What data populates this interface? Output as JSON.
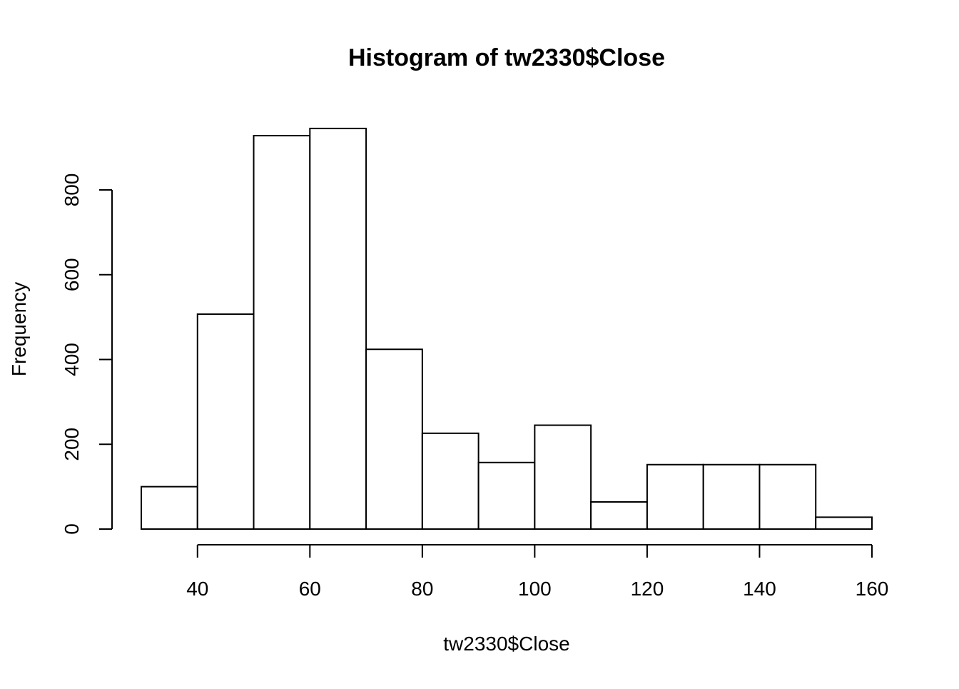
{
  "chart_data": {
    "type": "bar",
    "subtype": "histogram",
    "title": "Histogram of tw2330$Close",
    "xlabel": "tw2330$Close",
    "ylabel": "Frequency",
    "bin_edges": [
      30,
      40,
      50,
      60,
      70,
      80,
      90,
      100,
      110,
      120,
      130,
      140,
      150,
      160
    ],
    "values": [
      100,
      507,
      928,
      945,
      424,
      226,
      157,
      245,
      64,
      152,
      152,
      152,
      28
    ],
    "xlim": [
      30,
      160
    ],
    "ylim": [
      0,
      945
    ],
    "x_ticks": [
      40,
      60,
      80,
      100,
      120,
      140,
      160
    ],
    "x_tick_labels": [
      "40",
      "60",
      "80",
      "100",
      "120",
      "140",
      "160"
    ],
    "y_ticks": [
      0,
      200,
      400,
      600,
      800
    ],
    "y_tick_labels": [
      "0",
      "200",
      "400",
      "600",
      "800"
    ],
    "grid": false,
    "colors": {
      "bar_fill": "#ffffff",
      "bar_stroke": "#000000",
      "background": "#ffffff"
    }
  }
}
